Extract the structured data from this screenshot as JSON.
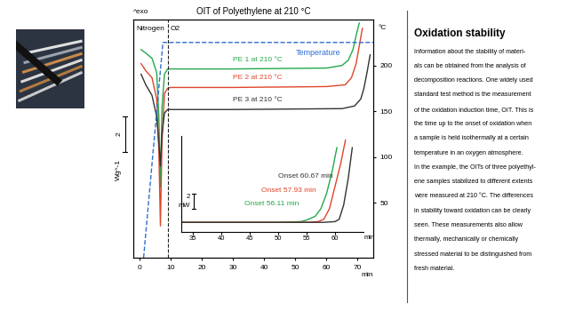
{
  "chart_data": [
    {
      "type": "line",
      "title": "OIT of Polyethylene at 210 °C",
      "y_label": "^exo",
      "xlabel": "min",
      "xlim": [
        -2,
        75
      ],
      "xticks": [
        0,
        10,
        20,
        30,
        40,
        50,
        60,
        70
      ],
      "ylim": [
        0,
        13.5
      ],
      "yticks": [],
      "scale_bar": {
        "value": 2,
        "unit": "Wg^-1"
      },
      "y2lim": [
        -10,
        250
      ],
      "y2ticks": [
        50,
        100,
        150,
        200
      ],
      "y2label": "°C",
      "gas_switch": {
        "x": 9,
        "before": "Nitrogen",
        "after": "O2"
      },
      "series": [
        {
          "name": "PE 1 at 210 °C",
          "color": "#22a84a",
          "x": [
            0.5,
            2,
            4,
            5.5,
            6.2,
            6.7,
            7.2,
            8,
            9,
            10,
            30,
            60,
            65,
            67,
            68.5,
            69.5,
            70.5
          ],
          "values": [
            11.8,
            11.6,
            11.3,
            10.5,
            8.0,
            4.0,
            8.5,
            10.4,
            10.7,
            10.7,
            10.7,
            10.75,
            10.9,
            11.2,
            11.8,
            12.6,
            13.3
          ]
        },
        {
          "name": "PE 2 at 210 °C",
          "color": "#e0452b",
          "x": [
            0.5,
            2,
            4,
            5.5,
            6.2,
            6.7,
            7.2,
            8,
            9,
            10,
            30,
            60,
            66,
            68,
            69.5,
            70.5,
            71.5
          ],
          "values": [
            11.0,
            10.6,
            10.2,
            9.0,
            6.0,
            1.8,
            6.5,
            9.3,
            9.6,
            9.65,
            9.65,
            9.7,
            9.8,
            10.2,
            11.0,
            12.0,
            13.0
          ]
        },
        {
          "name": "PE 3 at 210 °C",
          "color": "#333333",
          "x": [
            0.5,
            2,
            4,
            5.5,
            6.2,
            6.7,
            7.2,
            8,
            9,
            10,
            30,
            65,
            69,
            71,
            72,
            73,
            74
          ],
          "values": [
            10.4,
            9.8,
            9.2,
            8.0,
            6.5,
            5.2,
            7.0,
            8.2,
            8.4,
            8.4,
            8.4,
            8.45,
            8.6,
            9.0,
            9.6,
            10.5,
            11.5
          ]
        },
        {
          "name": "Temperature",
          "color": "#2f6fd0",
          "axis": "y2",
          "line_style": "dashed",
          "x": [
            1.3,
            7.5,
            75
          ],
          "values": [
            -10,
            225,
            225
          ]
        }
      ]
    },
    {
      "type": "line",
      "xlabel": "min",
      "xlim": [
        33,
        65
      ],
      "xticks": [
        35,
        40,
        45,
        50,
        55,
        60
      ],
      "ylim": [
        0,
        12.5
      ],
      "yticks": [],
      "scale_bar": {
        "value": 2,
        "unit": "mW"
      },
      "series": [
        {
          "color": "#22a84a",
          "annotation": "Onset 56.11 min",
          "x": [
            33,
            50,
            54,
            55,
            56.5,
            57.5,
            58.5,
            59.5,
            60.3
          ],
          "values": [
            1.2,
            1.2,
            1.3,
            1.5,
            2.0,
            3.0,
            5.0,
            8.0,
            11.0
          ]
        },
        {
          "color": "#e0452b",
          "annotation": "Onset 57.93 min",
          "x": [
            33,
            55,
            57,
            58,
            59,
            60,
            61,
            61.8
          ],
          "values": [
            1.2,
            1.2,
            1.3,
            1.6,
            3.0,
            6.0,
            9.0,
            12.0
          ]
        },
        {
          "color": "#333333",
          "annotation": "Onset 60.67 min",
          "x": [
            33,
            58,
            60,
            60.7,
            61.5,
            62.3,
            63
          ],
          "values": [
            1.2,
            1.2,
            1.3,
            1.6,
            3.5,
            7.0,
            11.0
          ]
        }
      ]
    }
  ],
  "sidebar": {
    "heading": "Oxidation stability",
    "lines": [
      "Information about the stability of materi-",
      "als can be obtained from the analysis of",
      "decomposition reactions. One widely used",
      "standard test method is the measurement",
      "of the oxidation induction time, OIT. This is",
      "the time up to the onset of oxidation when",
      "a sample is held isothermally at a certain",
      "temperature in an oxygen atmosphere.",
      "In the example, the OITs of three polyethyl-",
      "ene samples stabilized to different extents",
      "were measured at 210 °C. The differences",
      "in stability toward oxidation can be clearly",
      "seen. These measurements also allow",
      "thermally, mechanically or chemically",
      "stressed material to be distinguished from",
      "fresh material."
    ]
  }
}
